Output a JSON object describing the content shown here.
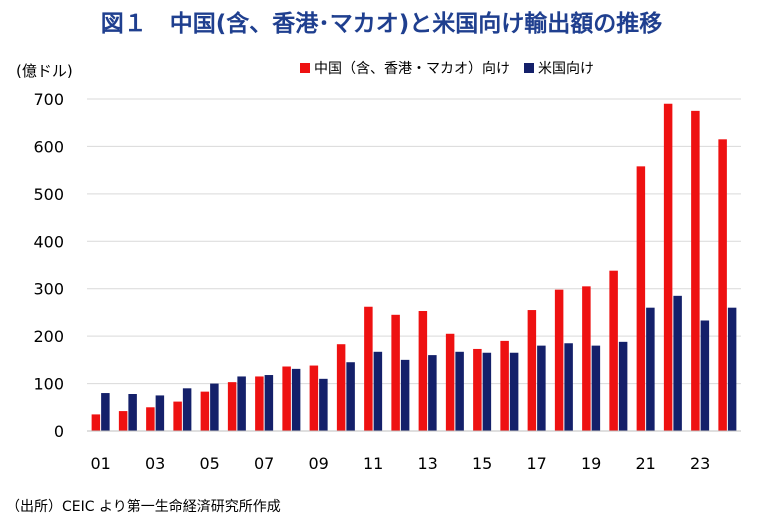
{
  "title": "図１　中国(含、香港･マカオ)と米国向け輸出額の推移",
  "source": "（出所）CEIC より第一生命経済研究所作成",
  "colors": {
    "china": "#ee1111",
    "us": "#14206a"
  },
  "chart_data": {
    "type": "bar",
    "ylabel": "(億ドル)",
    "ylim": [
      0,
      700
    ],
    "yticks": [
      0,
      100,
      200,
      300,
      400,
      500,
      600,
      700
    ],
    "grid": true,
    "legend_position": "top-right",
    "categories": [
      "01",
      "02",
      "03",
      "04",
      "05",
      "06",
      "07",
      "08",
      "09",
      "10",
      "11",
      "12",
      "13",
      "14",
      "15",
      "16",
      "17",
      "18",
      "19",
      "20",
      "21",
      "22",
      "23",
      "24"
    ],
    "category_labels_shown": [
      "01",
      "03",
      "05",
      "07",
      "09",
      "11",
      "13",
      "15",
      "17",
      "19",
      "21",
      "23"
    ],
    "series": [
      {
        "name": "中国（含、香港・マカオ）向け",
        "values": [
          35,
          42,
          50,
          62,
          83,
          103,
          115,
          136,
          138,
          183,
          262,
          245,
          253,
          205,
          173,
          190,
          255,
          298,
          305,
          338,
          558,
          690,
          675,
          615
        ]
      },
      {
        "name": "米国向け",
        "values": [
          80,
          78,
          75,
          90,
          100,
          115,
          118,
          131,
          110,
          145,
          167,
          150,
          160,
          167,
          165,
          165,
          180,
          185,
          180,
          188,
          260,
          285,
          233,
          260
        ]
      }
    ]
  }
}
